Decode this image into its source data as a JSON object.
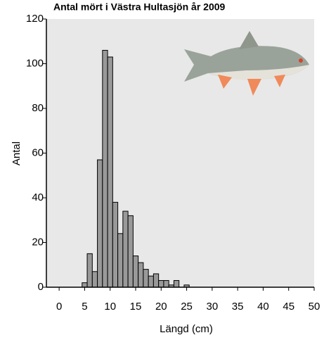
{
  "chart_data": {
    "type": "histogram",
    "title": "Antal mört i Västra Hultasjön år 2009",
    "x_label": "Längd (cm)",
    "y_label": "Antal",
    "bins": [
      4.5,
      5.5,
      6.5,
      7.5,
      8.5,
      9.5,
      10.5,
      11.5,
      12.5,
      13.5,
      14.5,
      15.5,
      16.5,
      17.5,
      18.5,
      19.5,
      20.5,
      21.5,
      22.5,
      23.5,
      24.5,
      25.5
    ],
    "values": [
      2,
      15,
      7,
      57,
      106,
      103,
      38,
      24,
      34,
      32,
      14,
      11,
      8,
      5,
      6,
      3,
      3,
      1,
      3,
      0,
      1
    ],
    "color": "#999999",
    "xlim": [
      -2.5,
      50
    ],
    "xticks": [
      0,
      5,
      10,
      15,
      20,
      25,
      30,
      35,
      40,
      45,
      50
    ],
    "ylim": [
      0,
      120
    ],
    "yticks": [
      0,
      20,
      40,
      60,
      80,
      100,
      120
    ]
  }
}
